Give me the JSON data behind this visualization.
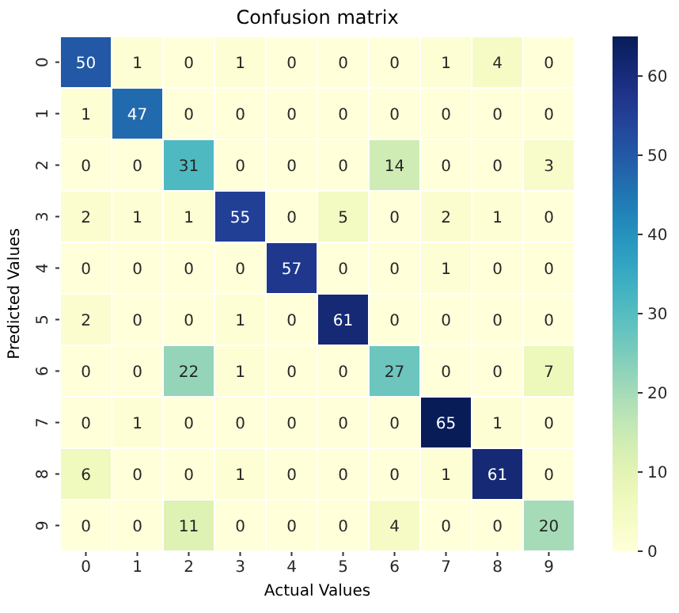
{
  "chart_data": {
    "type": "heatmap",
    "title": "Confusion matrix",
    "xlabel": "Actual Values",
    "ylabel": "Predicted Values",
    "categories": [
      "0",
      "1",
      "2",
      "3",
      "4",
      "5",
      "6",
      "7",
      "8",
      "9"
    ],
    "y_categories": [
      "0",
      "1",
      "2",
      "3",
      "4",
      "5",
      "6",
      "7",
      "8",
      "9"
    ],
    "cells": [
      [
        50,
        1,
        0,
        1,
        0,
        0,
        0,
        1,
        4,
        0
      ],
      [
        1,
        47,
        0,
        0,
        0,
        0,
        0,
        0,
        0,
        0
      ],
      [
        0,
        0,
        31,
        0,
        0,
        0,
        14,
        0,
        0,
        3
      ],
      [
        2,
        1,
        1,
        55,
        0,
        5,
        0,
        2,
        1,
        0
      ],
      [
        0,
        0,
        0,
        0,
        57,
        0,
        0,
        1,
        0,
        0
      ],
      [
        2,
        0,
        0,
        1,
        0,
        61,
        0,
        0,
        0,
        0
      ],
      [
        0,
        0,
        22,
        1,
        0,
        0,
        27,
        0,
        0,
        7
      ],
      [
        0,
        1,
        0,
        0,
        0,
        0,
        0,
        65,
        1,
        0
      ],
      [
        6,
        0,
        0,
        1,
        0,
        0,
        0,
        1,
        61,
        0
      ],
      [
        0,
        0,
        11,
        0,
        0,
        0,
        4,
        0,
        0,
        20
      ]
    ],
    "clim": [
      0,
      65
    ],
    "cticks": [
      0,
      10,
      20,
      30,
      40,
      50,
      60
    ],
    "data_labels": true
  }
}
